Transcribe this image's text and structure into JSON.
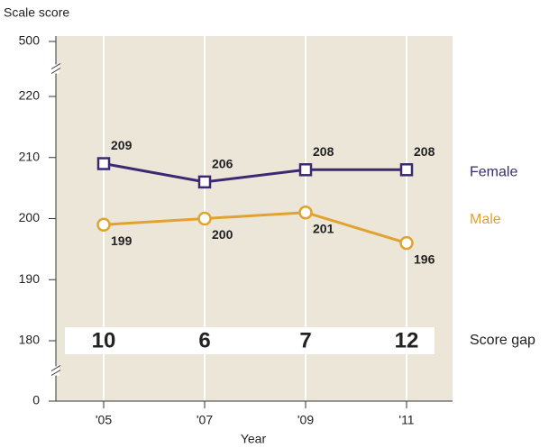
{
  "chart_data": {
    "type": "line",
    "y_label": "Scale score",
    "x_label": "Year",
    "categories": [
      "'05",
      "'07",
      "'09",
      "'11"
    ],
    "series": [
      {
        "name": "Female",
        "color": "#3b2a72",
        "marker": "square",
        "values": [
          209,
          206,
          208,
          208
        ]
      },
      {
        "name": "Male",
        "color": "#e0a330",
        "marker": "circle",
        "values": [
          199,
          200,
          201,
          196
        ]
      }
    ],
    "ylim": [
      0,
      500
    ],
    "yticks": [
      0,
      180,
      190,
      200,
      210,
      220,
      500
    ],
    "y_breaks": [
      [
        0,
        180
      ],
      [
        220,
        500
      ]
    ],
    "score_gap": {
      "label": "Score gap",
      "values": [
        10,
        6,
        7,
        12
      ]
    }
  }
}
